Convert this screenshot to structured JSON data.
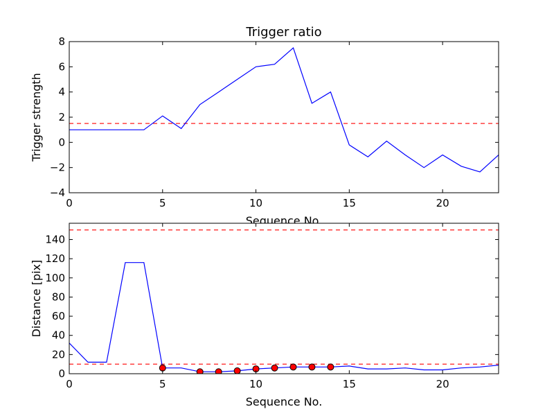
{
  "chart_data": [
    {
      "type": "line",
      "title": "Trigger ratio",
      "xlabel": "Sequence No.",
      "ylabel": "Trigger strength",
      "xlim": [
        0,
        23
      ],
      "ylim": [
        -4,
        8
      ],
      "xticks": [
        0,
        5,
        10,
        15,
        20
      ],
      "yticks": [
        -4,
        -2,
        0,
        2,
        4,
        6,
        8
      ],
      "grid": false,
      "series": [
        {
          "color": "#0000ff",
          "x": [
            0,
            1,
            2,
            3,
            4,
            5,
            6,
            7,
            8,
            9,
            10,
            11,
            12,
            13,
            14,
            15,
            16,
            17,
            18,
            19,
            20,
            21,
            22,
            23
          ],
          "y": [
            1.0,
            1.0,
            1.0,
            1.0,
            1.0,
            2.1,
            1.1,
            3.0,
            4.0,
            5.0,
            6.0,
            6.2,
            7.5,
            3.1,
            4.0,
            -0.2,
            -1.15,
            0.1,
            -1.0,
            -2.0,
            -1.0,
            -1.9,
            -2.35,
            -1.0
          ]
        }
      ],
      "hlines": [
        {
          "y": 1.5,
          "color": "#ff0000",
          "style": "dashed"
        }
      ]
    },
    {
      "type": "line",
      "title": "",
      "xlabel": "Sequence No.",
      "ylabel": "Distance [pix]",
      "xlim": [
        0,
        23
      ],
      "ylim": [
        0,
        157
      ],
      "xticks": [
        0,
        5,
        10,
        15,
        20
      ],
      "yticks": [
        0,
        20,
        40,
        60,
        80,
        100,
        120,
        140
      ],
      "grid": false,
      "series": [
        {
          "color": "#0000ff",
          "x": [
            0,
            1,
            2,
            3,
            4,
            5,
            6,
            7,
            8,
            9,
            10,
            11,
            12,
            13,
            14,
            15,
            16,
            17,
            18,
            19,
            20,
            21,
            22,
            23
          ],
          "y": [
            32,
            12,
            12,
            116,
            116,
            6,
            6,
            2,
            2,
            3,
            5,
            6,
            7,
            7,
            7,
            8,
            5,
            5,
            6,
            4,
            4,
            6,
            7,
            9
          ]
        }
      ],
      "markers": {
        "color": "#ff0000",
        "x": [
          5,
          7,
          8,
          9,
          10,
          11,
          12,
          13,
          14
        ],
        "y": [
          6,
          2,
          2,
          3,
          5,
          6,
          7,
          7,
          7
        ]
      },
      "hlines": [
        {
          "y": 150,
          "color": "#ff0000",
          "style": "dashed"
        },
        {
          "y": 10,
          "color": "#ff0000",
          "style": "dashed"
        }
      ]
    }
  ]
}
